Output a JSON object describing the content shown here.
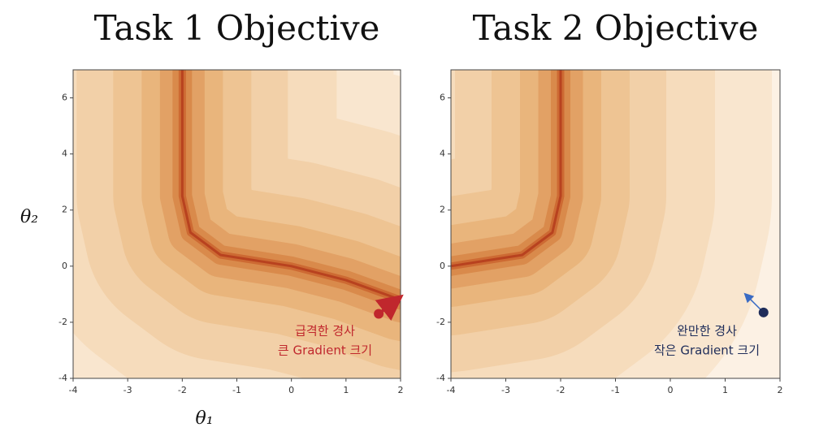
{
  "chart_data": [
    {
      "type": "contour",
      "title": "Task 1 Objective",
      "xlabel": "θ₁",
      "ylabel": "θ₂",
      "xlim": [
        -4,
        2
      ],
      "ylim": [
        -4,
        7
      ],
      "xticks": [
        -4,
        -3,
        -2,
        -1,
        0,
        1,
        2
      ],
      "yticks": [
        -4,
        -2,
        0,
        2,
        4,
        6
      ],
      "point": {
        "x": 1.6,
        "y": -1.7,
        "color": "#c0272d"
      },
      "annotation": [
        "급격한 경사",
        "큰 Gradient 크기"
      ]
    },
    {
      "type": "contour",
      "title": "Task 2 Objective",
      "xlim": [
        -4,
        2
      ],
      "ylim": [
        -4,
        7
      ],
      "xticks": [
        -4,
        -3,
        -2,
        -1,
        0,
        1,
        2
      ],
      "yticks": [
        -4,
        -2,
        0,
        2,
        4,
        6
      ],
      "point": {
        "x": 1.7,
        "y": -1.65,
        "color": "#1f2d5a"
      },
      "annotation": [
        "완만한 경사",
        "작은 Gradient 크기"
      ]
    }
  ]
}
